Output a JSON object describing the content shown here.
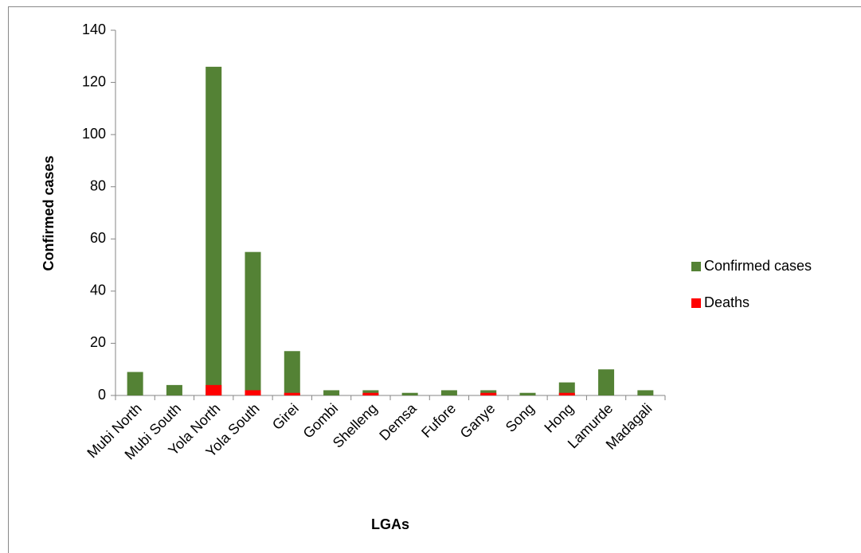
{
  "chart_data": {
    "type": "bar",
    "categories": [
      "Mubi North",
      "Mubi South",
      "Yola North",
      "Yola South",
      "Girei",
      "Gombi",
      "Shelleng",
      "Demsa",
      "Fufore",
      "Ganye",
      "Song",
      "Hong",
      "Lamurde",
      "Madagali"
    ],
    "series": [
      {
        "name": "Confirmed cases",
        "color": "#548235",
        "values": [
          9,
          4,
          126,
          55,
          17,
          2,
          2,
          1,
          2,
          2,
          1,
          5,
          10,
          2
        ]
      },
      {
        "name": "Deaths",
        "color": "#ff0000",
        "values": [
          0,
          0,
          4,
          2,
          1,
          0,
          1,
          0,
          0,
          1,
          0,
          1,
          0,
          0
        ]
      }
    ],
    "x_label": "LGAs",
    "y_label": "Confirmed cases",
    "ylim": [
      0,
      140
    ],
    "yticks": [
      0,
      20,
      40,
      60,
      80,
      100,
      120,
      140
    ],
    "grid": false,
    "legend": "right"
  }
}
